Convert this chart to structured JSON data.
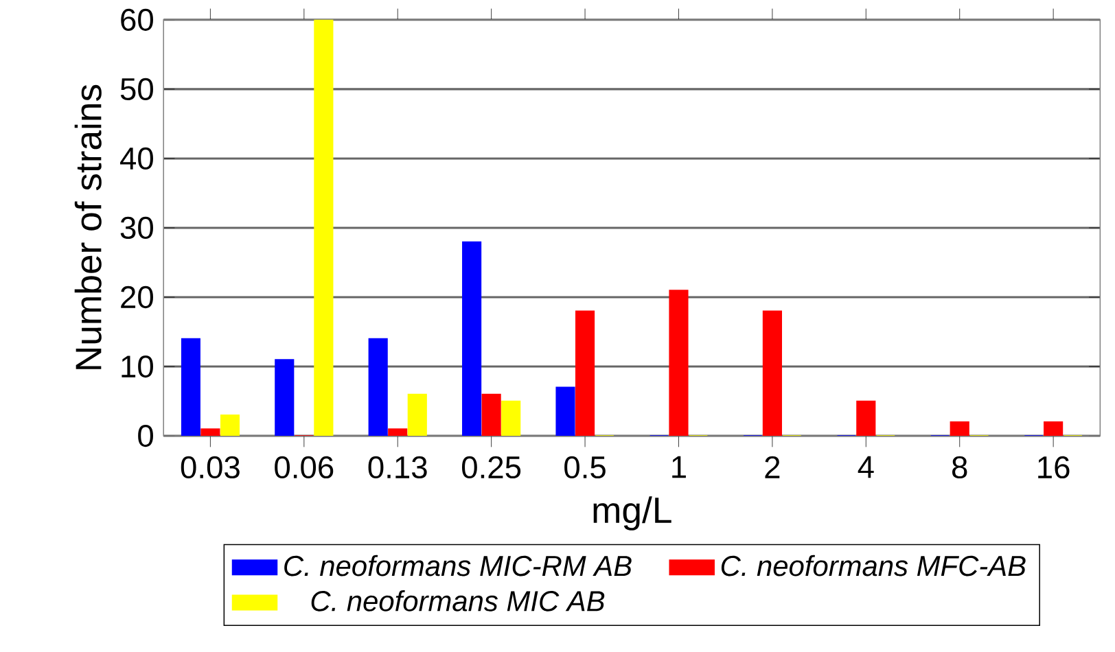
{
  "chart_data": {
    "type": "bar",
    "xlabel": "mg/L",
    "ylabel": "Number of strains",
    "categories": [
      "0.03",
      "0.06",
      "0.13",
      "0.25",
      "0.5",
      "1",
      "2",
      "4",
      "8",
      "16"
    ],
    "series": [
      {
        "name": "*C. neoformans MIC-RM AB*",
        "color": "#0000ff",
        "values": [
          14,
          11,
          14,
          28,
          7,
          0,
          0,
          0,
          0,
          0
        ]
      },
      {
        "name": "*C. neoformans  MFC-AB*",
        "color": "#ff0000",
        "values": [
          1,
          0,
          1,
          6,
          18,
          21,
          18,
          5,
          2,
          2
        ]
      },
      {
        "name": "*C. neoformans MIC AB*",
        "color": "#ffff00",
        "values": [
          3,
          60,
          6,
          5,
          0,
          0,
          0,
          0,
          0,
          0
        ]
      }
    ],
    "ylim": [
      0,
      60
    ],
    "yticks": [
      0,
      10,
      20,
      30,
      40,
      50,
      60
    ],
    "grid": "y",
    "legend": "bottom"
  }
}
